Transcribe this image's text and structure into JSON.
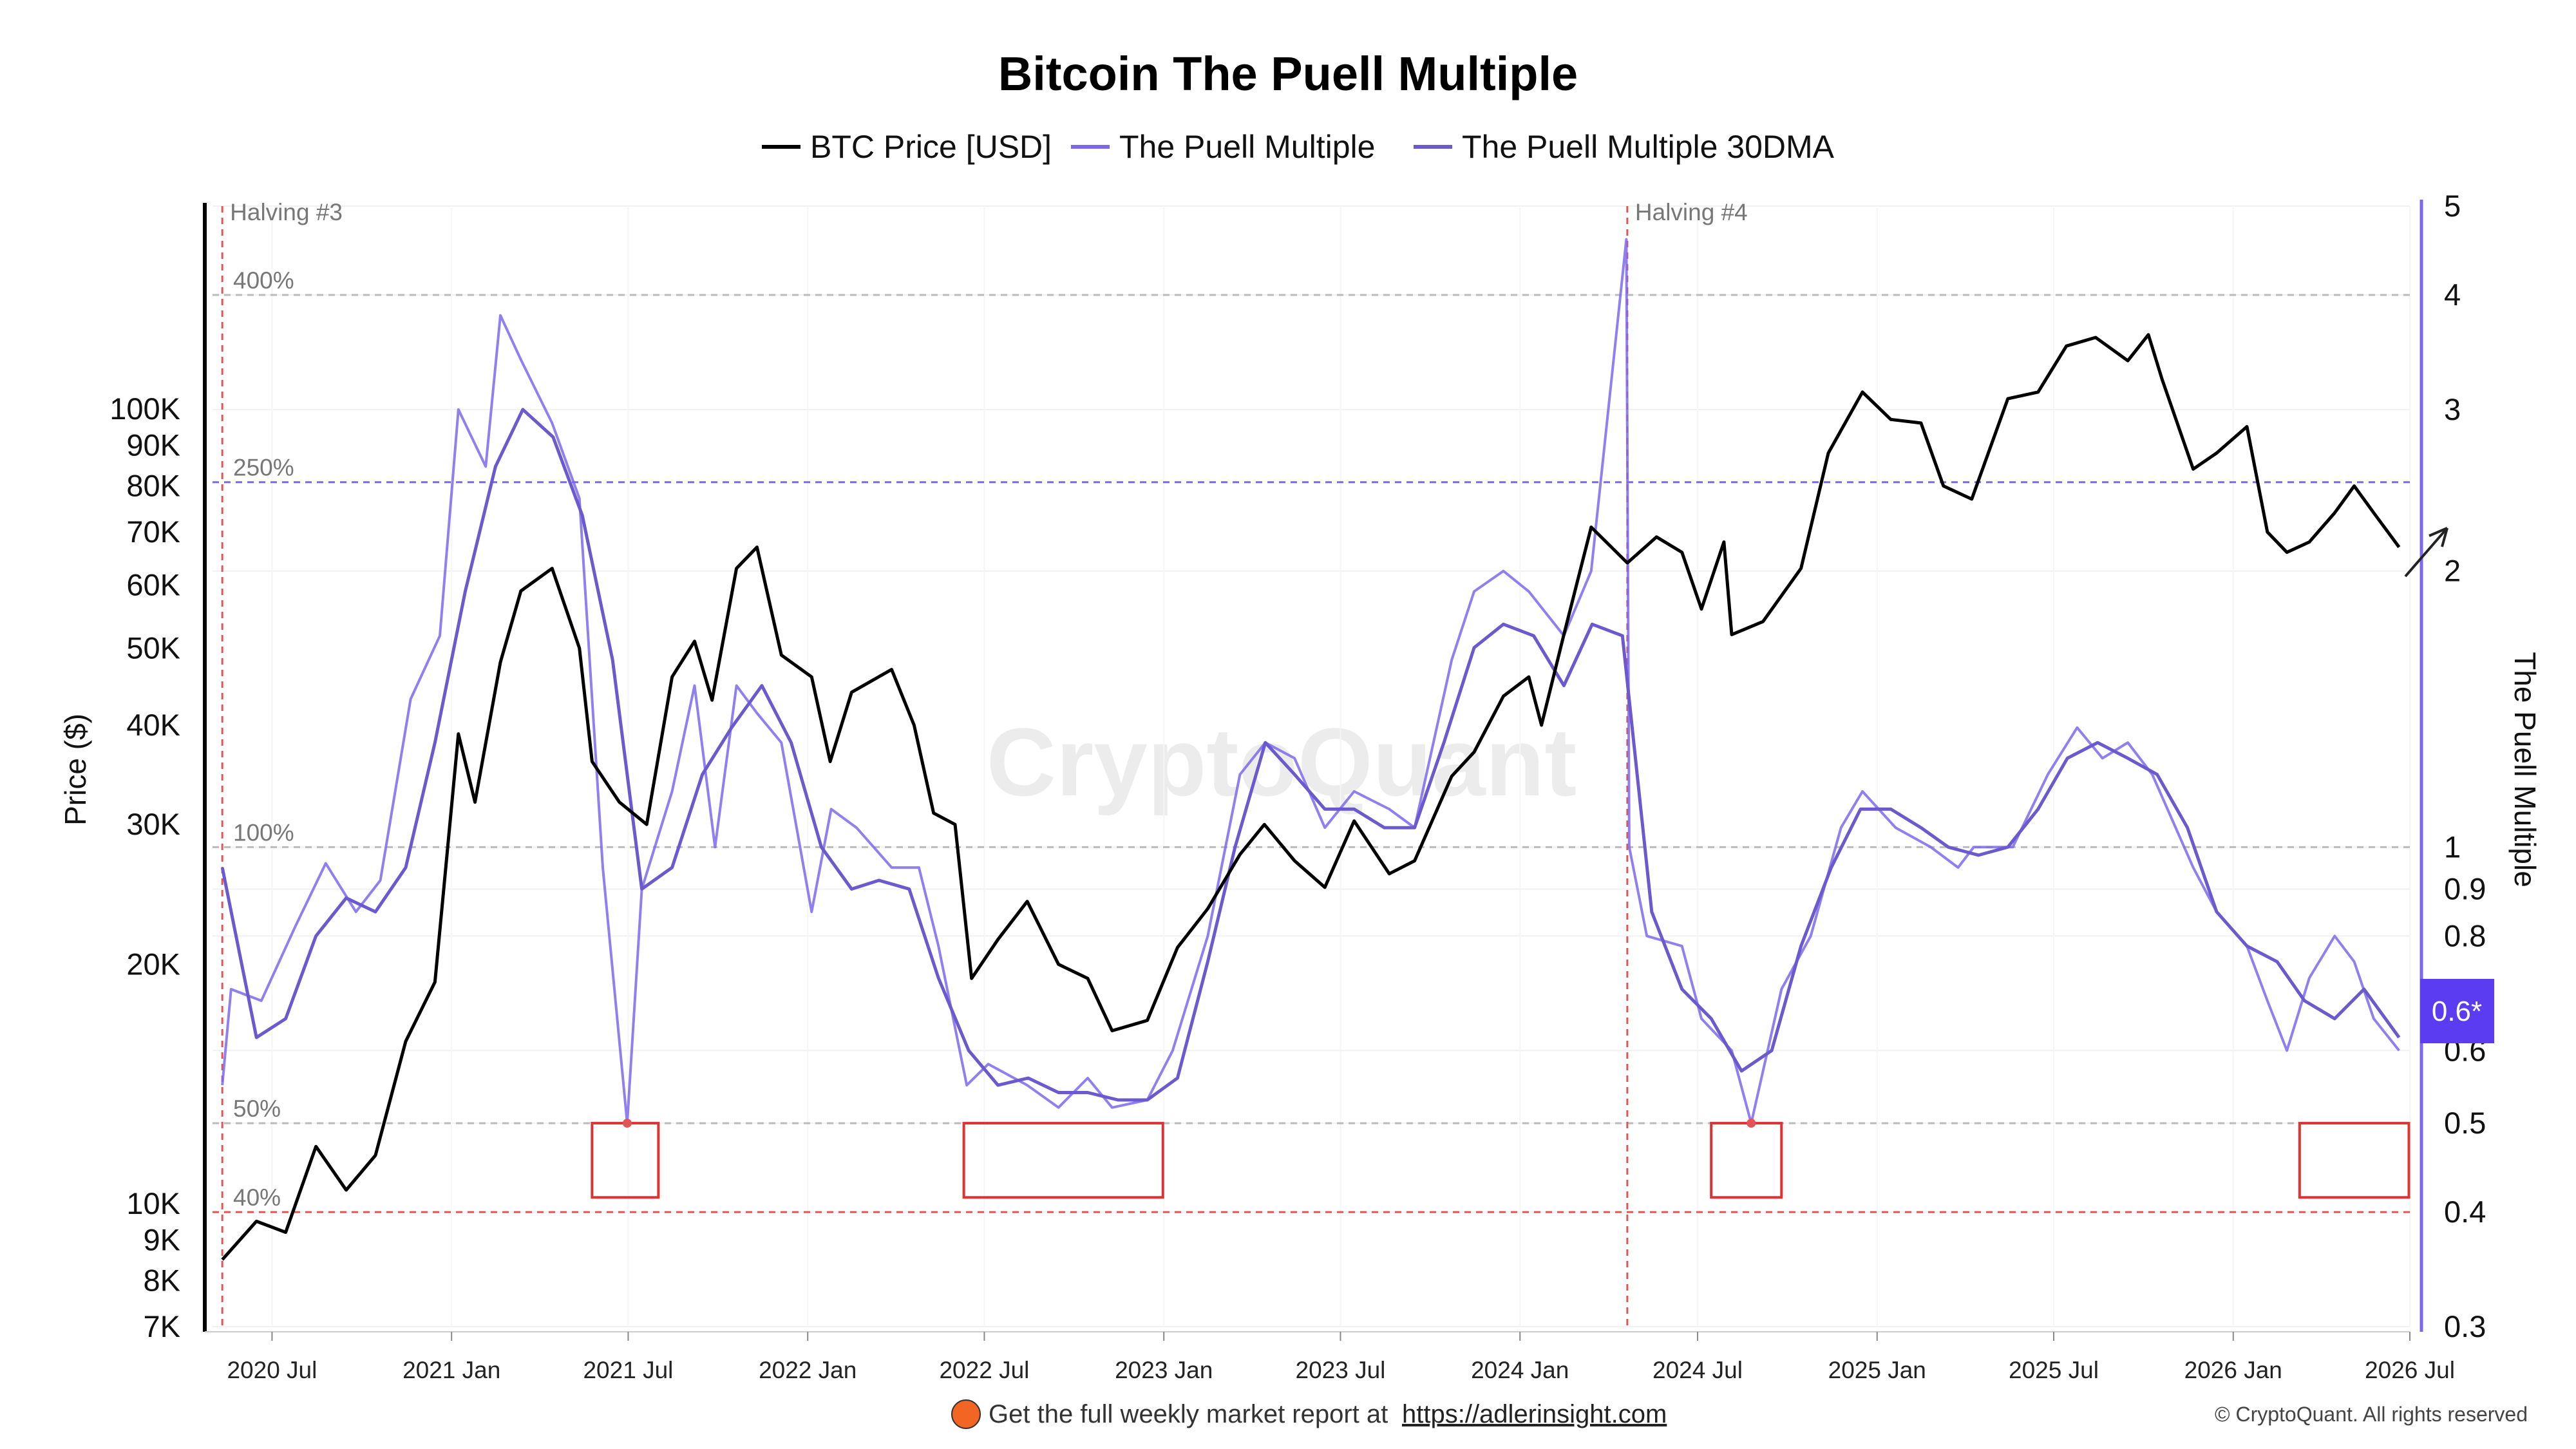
{
  "chart_data": {
    "type": "line",
    "title": "Bitcoin The Puell Multiple",
    "legend": [
      "BTC Price [USD]",
      "The Puell Multiple",
      "The Puell Multiple 30DMA"
    ],
    "legend_placement": "top-center",
    "ylabel_left": "Price ($)",
    "ylabel_right": "The Puell Multiple",
    "left_axis": {
      "scale": "log",
      "ylim": [
        7000,
        180000
      ],
      "ticks": [
        7000,
        8000,
        9000,
        10000,
        20000,
        30000,
        40000,
        50000,
        60000,
        70000,
        80000,
        90000,
        100000
      ],
      "tick_labels": [
        "7K",
        "8K",
        "9K",
        "10K",
        "20K",
        "30K",
        "40K",
        "50K",
        "60K",
        "70K",
        "80K",
        "90K",
        "100K"
      ]
    },
    "right_axis": {
      "scale": "log",
      "ylim": [
        0.3,
        5
      ],
      "ticks": [
        0.3,
        0.4,
        0.5,
        0.6,
        0.8,
        0.9,
        1,
        2,
        3,
        4,
        5
      ],
      "tick_labels": [
        "0.3",
        "0.4",
        "0.5",
        "0.6",
        "0.8",
        "0.9",
        "1",
        "2",
        "3",
        "4",
        "5"
      ]
    },
    "x_axis": {
      "xlim": [
        "2020-05-01",
        "2026-07-01"
      ],
      "ticks": [
        "2020-07-01",
        "2021-01-01",
        "2021-07-01",
        "2022-01-01",
        "2022-07-01",
        "2023-01-01",
        "2023-07-01",
        "2024-01-01",
        "2024-07-01",
        "2025-01-01",
        "2025-07-01",
        "2026-01-01",
        "2026-07-01"
      ],
      "tick_labels": [
        "2020 Jul",
        "2021 Jan",
        "2021 Jul",
        "2022 Jan",
        "2022 Jul",
        "2023 Jan",
        "2023 Jul",
        "2024 Jan",
        "2024 Jul",
        "2025 Jan",
        "2025 Jul",
        "2026 Jan",
        "2026 Jul"
      ]
    },
    "grid": true,
    "reference_lines": [
      {
        "label": "400%",
        "value": 4,
        "color": "#bbbbbb"
      },
      {
        "label": "250%",
        "value": 2.5,
        "color": "#7b68ee"
      },
      {
        "label": "100%",
        "value": 1,
        "color": "#bbbbbb"
      },
      {
        "label": "50%",
        "value": 0.5,
        "color": "#bbbbbb"
      },
      {
        "label": "40%",
        "value": 0.4,
        "color": "#e05555"
      }
    ],
    "events": [
      {
        "label": "Halving #3",
        "date": "2020-05-11"
      },
      {
        "label": "Halving #4",
        "date": "2024-04-20"
      }
    ],
    "highlight_windows": [
      {
        "start": "2021-05-25",
        "end": "2021-08-01"
      },
      {
        "start": "2022-06-10",
        "end": "2022-12-31"
      },
      {
        "start": "2024-07-15",
        "end": "2024-09-25"
      },
      {
        "start": "2026-03-10",
        "end": "2026-06-30"
      }
    ],
    "current_value_label": "0.6*",
    "series": [
      {
        "name": "BTC Price [USD]",
        "axis": "left",
        "color": "#000000",
        "x": [
          "2020-05-11",
          "2020-06-15",
          "2020-07-15",
          "2020-08-15",
          "2020-09-15",
          "2020-10-15",
          "2020-11-15",
          "2020-12-15",
          "2021-01-08",
          "2021-01-25",
          "2021-02-20",
          "2021-03-13",
          "2021-04-14",
          "2021-05-12",
          "2021-05-25",
          "2021-06-22",
          "2021-07-20",
          "2021-08-15",
          "2021-09-07",
          "2021-09-25",
          "2021-10-20",
          "2021-11-10",
          "2021-12-05",
          "2022-01-05",
          "2022-01-24",
          "2022-02-15",
          "2022-03-28",
          "2022-04-20",
          "2022-05-10",
          "2022-06-01",
          "2022-06-18",
          "2022-07-15",
          "2022-08-14",
          "2022-09-15",
          "2022-10-15",
          "2022-11-09",
          "2022-12-15",
          "2023-01-15",
          "2023-02-15",
          "2023-03-20",
          "2023-04-14",
          "2023-05-15",
          "2023-06-15",
          "2023-07-15",
          "2023-08-20",
          "2023-09-15",
          "2023-10-23",
          "2023-11-15",
          "2023-12-15",
          "2024-01-10",
          "2024-01-23",
          "2024-02-15",
          "2024-03-14",
          "2024-04-20",
          "2024-05-20",
          "2024-06-15",
          "2024-07-05",
          "2024-07-28",
          "2024-08-05",
          "2024-09-06",
          "2024-10-15",
          "2024-11-12",
          "2024-12-17",
          "2025-01-15",
          "2025-02-15",
          "2025-03-10",
          "2025-04-08",
          "2025-05-15",
          "2025-06-15",
          "2025-07-14",
          "2025-08-13",
          "2025-09-15",
          "2025-10-06",
          "2025-10-20",
          "2025-11-21",
          "2025-12-15",
          "2026-01-15",
          "2026-02-05",
          "2026-02-25",
          "2026-03-20",
          "2026-04-15",
          "2026-05-05",
          "2026-05-25",
          "2026-06-20"
        ],
        "y": [
          8500,
          9500,
          9200,
          11800,
          10400,
          11500,
          16000,
          19000,
          39000,
          32000,
          48000,
          59000,
          63000,
          50000,
          36000,
          32000,
          30000,
          46000,
          51000,
          43000,
          63000,
          67000,
          49000,
          46000,
          36000,
          44000,
          47000,
          40000,
          31000,
          30000,
          19200,
          21500,
          24000,
          20000,
          19200,
          16500,
          17000,
          21000,
          23500,
          27500,
          30000,
          27000,
          25000,
          30300,
          26000,
          27000,
          34500,
          37000,
          43500,
          46000,
          40000,
          52000,
          71000,
          64000,
          69000,
          66000,
          56000,
          68000,
          52000,
          54000,
          63000,
          88000,
          105000,
          97000,
          96000,
          80000,
          77000,
          103000,
          105000,
          120000,
          123000,
          115000,
          124000,
          109000,
          84000,
          88000,
          95000,
          70000,
          66000,
          68000,
          74000,
          80000,
          74000,
          67000
        ]
      },
      {
        "name": "The Puell Multiple",
        "axis": "right",
        "color": "#7b68ee",
        "x": [
          "2020-05-11",
          "2020-05-20",
          "2020-06-20",
          "2020-07-25",
          "2020-08-25",
          "2020-09-25",
          "2020-10-20",
          "2020-11-20",
          "2020-12-20",
          "2021-01-08",
          "2021-02-05",
          "2021-02-20",
          "2021-03-13",
          "2021-04-14",
          "2021-05-12",
          "2021-06-05",
          "2021-06-30",
          "2021-07-15",
          "2021-08-15",
          "2021-09-07",
          "2021-09-28",
          "2021-10-20",
          "2021-11-10",
          "2021-12-05",
          "2022-01-05",
          "2022-01-25",
          "2022-02-20",
          "2022-03-28",
          "2022-04-25",
          "2022-05-15",
          "2022-06-13",
          "2022-07-05",
          "2022-08-14",
          "2022-09-15",
          "2022-10-15",
          "2022-11-09",
          "2022-12-15",
          "2023-01-10",
          "2023-02-15",
          "2023-03-20",
          "2023-04-15",
          "2023-05-15",
          "2023-06-15",
          "2023-07-15",
          "2023-08-20",
          "2023-09-15",
          "2023-10-23",
          "2023-11-15",
          "2023-12-15",
          "2024-01-10",
          "2024-02-15",
          "2024-03-14",
          "2024-04-19",
          "2024-04-22",
          "2024-05-10",
          "2024-06-15",
          "2024-07-05",
          "2024-08-05",
          "2024-08-25",
          "2024-09-25",
          "2024-10-25",
          "2024-11-25",
          "2024-12-17",
          "2025-01-20",
          "2025-02-25",
          "2025-03-25",
          "2025-04-10",
          "2025-05-20",
          "2025-06-25",
          "2025-07-25",
          "2025-08-20",
          "2025-09-15",
          "2025-10-10",
          "2025-11-21",
          "2025-12-15",
          "2026-01-15",
          "2026-02-05",
          "2026-02-25",
          "2026-03-20",
          "2026-04-15",
          "2026-05-05",
          "2026-05-25",
          "2026-06-20"
        ],
        "y": [
          0.55,
          0.7,
          0.68,
          0.82,
          0.96,
          0.85,
          0.92,
          1.45,
          1.7,
          3.0,
          2.6,
          3.8,
          3.4,
          2.9,
          2.4,
          0.95,
          0.5,
          0.9,
          1.15,
          1.5,
          1.0,
          1.5,
          1.4,
          1.3,
          0.85,
          1.1,
          1.05,
          0.95,
          0.95,
          0.78,
          0.55,
          0.58,
          0.55,
          0.52,
          0.56,
          0.52,
          0.53,
          0.6,
          0.8,
          1.2,
          1.3,
          1.25,
          1.05,
          1.15,
          1.1,
          1.05,
          1.6,
          1.9,
          2.0,
          1.9,
          1.7,
          2.0,
          4.6,
          1.0,
          0.8,
          0.78,
          0.65,
          0.6,
          0.5,
          0.7,
          0.8,
          1.05,
          1.15,
          1.05,
          1.0,
          0.95,
          1.0,
          1.0,
          1.2,
          1.35,
          1.25,
          1.3,
          1.2,
          0.95,
          0.85,
          0.78,
          0.68,
          0.6,
          0.72,
          0.8,
          0.75,
          0.65,
          0.6
        ]
      },
      {
        "name": "The Puell Multiple 30DMA",
        "axis": "right",
        "color": "#6a5acd",
        "x": [
          "2020-05-11",
          "2020-06-15",
          "2020-07-15",
          "2020-08-15",
          "2020-09-15",
          "2020-10-15",
          "2020-11-15",
          "2020-12-15",
          "2021-01-15",
          "2021-02-15",
          "2021-03-15",
          "2021-04-15",
          "2021-05-15",
          "2021-06-15",
          "2021-07-15",
          "2021-08-15",
          "2021-09-15",
          "2021-10-15",
          "2021-11-15",
          "2021-12-15",
          "2022-01-15",
          "2022-02-15",
          "2022-03-15",
          "2022-04-15",
          "2022-05-15",
          "2022-06-15",
          "2022-07-15",
          "2022-08-15",
          "2022-09-15",
          "2022-10-15",
          "2022-11-15",
          "2022-12-15",
          "2023-01-15",
          "2023-02-15",
          "2023-03-15",
          "2023-04-15",
          "2023-05-15",
          "2023-06-15",
          "2023-07-15",
          "2023-08-15",
          "2023-09-15",
          "2023-10-15",
          "2023-11-15",
          "2023-12-15",
          "2024-01-15",
          "2024-02-15",
          "2024-03-15",
          "2024-04-15",
          "2024-05-15",
          "2024-06-15",
          "2024-07-15",
          "2024-08-15",
          "2024-09-15",
          "2024-10-15",
          "2024-11-15",
          "2024-12-15",
          "2025-01-15",
          "2025-02-15",
          "2025-03-15",
          "2025-04-15",
          "2025-05-15",
          "2025-06-15",
          "2025-07-15",
          "2025-08-15",
          "2025-09-15",
          "2025-10-15",
          "2025-11-15",
          "2025-12-15",
          "2026-01-15",
          "2026-02-15",
          "2026-03-15",
          "2026-04-15",
          "2026-05-15",
          "2026-06-20"
        ],
        "y": [
          0.95,
          0.62,
          0.65,
          0.8,
          0.88,
          0.85,
          0.95,
          1.3,
          1.9,
          2.6,
          3.0,
          2.8,
          2.3,
          1.6,
          0.9,
          0.95,
          1.2,
          1.35,
          1.5,
          1.3,
          1.0,
          0.9,
          0.92,
          0.9,
          0.72,
          0.6,
          0.55,
          0.56,
          0.54,
          0.54,
          0.53,
          0.53,
          0.56,
          0.75,
          1.0,
          1.3,
          1.2,
          1.1,
          1.1,
          1.05,
          1.05,
          1.3,
          1.65,
          1.75,
          1.7,
          1.5,
          1.75,
          1.7,
          0.85,
          0.7,
          0.65,
          0.57,
          0.6,
          0.78,
          0.95,
          1.1,
          1.1,
          1.05,
          1.0,
          0.98,
          1.0,
          1.1,
          1.25,
          1.3,
          1.25,
          1.2,
          1.05,
          0.85,
          0.78,
          0.75,
          0.68,
          0.65,
          0.7,
          0.62
        ]
      }
    ]
  },
  "footer": {
    "cta_prefix": "Get the full weekly market report at",
    "cta_link": "https://adlerinsight.com",
    "credit": "© CryptoQuant. All rights reserved"
  },
  "watermark": "CryptoQuant",
  "colors": {
    "price": "#000000",
    "puell": "#7b68ee",
    "puell_ma": "#6a5acd",
    "puell_low": "#e05555",
    "badge": "#5b3cf0",
    "footer_dot": "#f26522"
  }
}
